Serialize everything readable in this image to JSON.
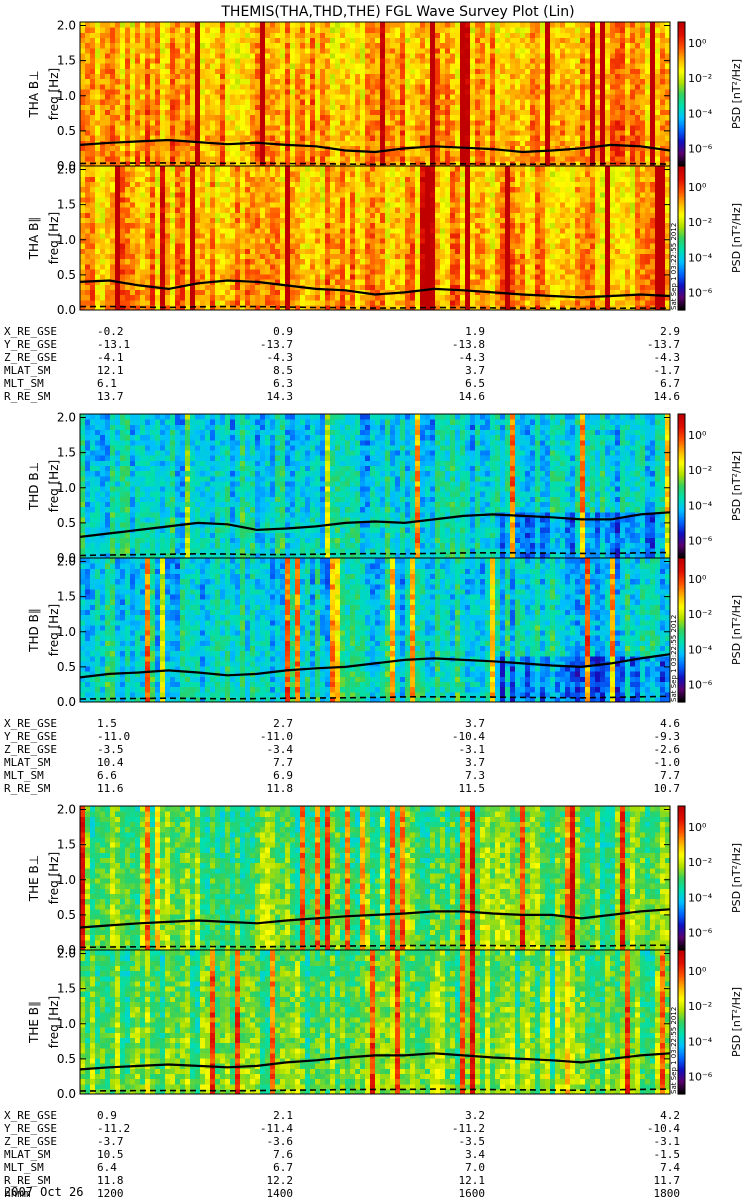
{
  "title": "THEMIS(THA,THD,THE) FGL Wave Survey Plot (Lin)",
  "date_label": "2007 Oct 26",
  "footer_text": "Sat Sep  1 03:22:55 2012",
  "colorbar": {
    "label": "PSD [nT²/Hz]",
    "ticks": [
      "10⁰",
      "10⁻²",
      "10⁻⁴",
      "10⁻⁶"
    ],
    "tick_exponents": [
      0,
      -2,
      -4,
      -6
    ],
    "range_exponents": [
      -7,
      1.2
    ]
  },
  "freq_axis": {
    "label": "freq [Hz]",
    "ticks": [
      "0.0",
      "0.5",
      "1.0",
      "1.5",
      "2.0"
    ],
    "tick_values": [
      0,
      0.5,
      1.0,
      1.5,
      2.0
    ],
    "range": [
      0,
      2.05
    ]
  },
  "colors": {
    "spectrum": [
      "#000000",
      "#5a006e",
      "#1010c0",
      "#0068ff",
      "#00c0ff",
      "#00e0b0",
      "#30d060",
      "#b0e000",
      "#ffff00",
      "#ffb000",
      "#ff5000",
      "#e01000",
      "#c00000"
    ]
  },
  "chart_data": [
    {
      "type": "heatmap",
      "probe": "THA",
      "panels": [
        {
          "ylabel": "THA B⊥",
          "component": "perp",
          "level": "high",
          "line_values": [
            0.3,
            0.33,
            0.35,
            0.37,
            0.34,
            0.31,
            0.33,
            0.3,
            0.28,
            0.22,
            0.2,
            0.25,
            0.28,
            0.26,
            0.24,
            0.2,
            0.22,
            0.25,
            0.3,
            0.28,
            0.22
          ]
        },
        {
          "ylabel": "THA B∥",
          "component": "par",
          "level": "high",
          "line_values": [
            0.4,
            0.42,
            0.35,
            0.3,
            0.38,
            0.42,
            0.4,
            0.35,
            0.3,
            0.28,
            0.22,
            0.25,
            0.3,
            0.28,
            0.25,
            0.22,
            0.2,
            0.18,
            0.2,
            0.22,
            0.2
          ]
        }
      ],
      "ephemeris": {
        "rows": [
          {
            "label": "X_RE_GSE",
            "values": [
              "-0.2",
              "0.9",
              "1.9",
              "2.9"
            ]
          },
          {
            "label": "Y_RE_GSE",
            "values": [
              "-13.1",
              "-13.7",
              "-13.8",
              "-13.7"
            ]
          },
          {
            "label": "Z_RE_GSE",
            "values": [
              "-4.1",
              "-4.3",
              "-4.3",
              "-4.3"
            ]
          },
          {
            "label": "MLAT_SM",
            "values": [
              "12.1",
              "8.5",
              "3.7",
              "-1.7"
            ]
          },
          {
            "label": "MLT_SM",
            "values": [
              "6.1",
              "6.3",
              "6.5",
              "6.7"
            ]
          },
          {
            "label": "R_RE_SM",
            "values": [
              "13.7",
              "14.3",
              "14.6",
              "14.6"
            ]
          }
        ]
      }
    },
    {
      "type": "heatmap",
      "probe": "THD",
      "panels": [
        {
          "ylabel": "THD B⊥",
          "component": "perp",
          "level": "low",
          "line_values": [
            0.3,
            0.35,
            0.4,
            0.45,
            0.5,
            0.48,
            0.4,
            0.42,
            0.45,
            0.5,
            0.52,
            0.5,
            0.55,
            0.6,
            0.62,
            0.6,
            0.58,
            0.55,
            0.55,
            0.62,
            0.65
          ]
        },
        {
          "ylabel": "THD B∥",
          "component": "par",
          "level": "low",
          "line_values": [
            0.35,
            0.4,
            0.42,
            0.45,
            0.42,
            0.38,
            0.4,
            0.45,
            0.48,
            0.5,
            0.55,
            0.6,
            0.62,
            0.6,
            0.58,
            0.55,
            0.52,
            0.5,
            0.55,
            0.62,
            0.68
          ]
        }
      ],
      "ephemeris": {
        "rows": [
          {
            "label": "X_RE_GSE",
            "values": [
              "1.5",
              "2.7",
              "3.7",
              "4.6"
            ]
          },
          {
            "label": "Y_RE_GSE",
            "values": [
              "-11.0",
              "-11.0",
              "-10.4",
              "-9.3"
            ]
          },
          {
            "label": "Z_RE_GSE",
            "values": [
              "-3.5",
              "-3.4",
              "-3.1",
              "-2.6"
            ]
          },
          {
            "label": "MLAT_SM",
            "values": [
              "10.4",
              "7.7",
              "3.7",
              "-1.0"
            ]
          },
          {
            "label": "MLT_SM",
            "values": [
              "6.6",
              "6.9",
              "7.3",
              "7.7"
            ]
          },
          {
            "label": "R_RE_SM",
            "values": [
              "11.6",
              "11.8",
              "11.5",
              "10.7"
            ]
          }
        ]
      }
    },
    {
      "type": "heatmap",
      "probe": "THE",
      "panels": [
        {
          "ylabel": "THE B⊥",
          "component": "perp",
          "level": "mid",
          "line_values": [
            0.32,
            0.35,
            0.38,
            0.4,
            0.42,
            0.4,
            0.38,
            0.42,
            0.45,
            0.48,
            0.5,
            0.52,
            0.55,
            0.55,
            0.52,
            0.5,
            0.5,
            0.45,
            0.5,
            0.55,
            0.58
          ]
        },
        {
          "ylabel": "THE B∥",
          "component": "par",
          "level": "mid",
          "line_values": [
            0.35,
            0.38,
            0.4,
            0.42,
            0.4,
            0.38,
            0.4,
            0.45,
            0.48,
            0.52,
            0.55,
            0.55,
            0.58,
            0.55,
            0.52,
            0.5,
            0.48,
            0.45,
            0.5,
            0.55,
            0.58
          ]
        }
      ],
      "ephemeris": {
        "rows": [
          {
            "label": "X_RE_GSE",
            "values": [
              "0.9",
              "2.1",
              "3.2",
              "4.2"
            ]
          },
          {
            "label": "Y_RE_GSE",
            "values": [
              "-11.2",
              "-11.4",
              "-11.2",
              "-10.4"
            ]
          },
          {
            "label": "Z_RE_GSE",
            "values": [
              "-3.7",
              "-3.6",
              "-3.5",
              "-3.1"
            ]
          },
          {
            "label": "MLAT_SM",
            "values": [
              "10.5",
              "7.6",
              "3.4",
              "-1.5"
            ]
          },
          {
            "label": "MLT_SM",
            "values": [
              "6.4",
              "6.7",
              "7.0",
              "7.4"
            ]
          },
          {
            "label": "R_RE_SM",
            "values": [
              "11.8",
              "12.2",
              "12.1",
              "11.7"
            ]
          },
          {
            "label": "hhmm",
            "values": [
              "1200",
              "1400",
              "1600",
              "1800"
            ]
          }
        ]
      }
    }
  ]
}
